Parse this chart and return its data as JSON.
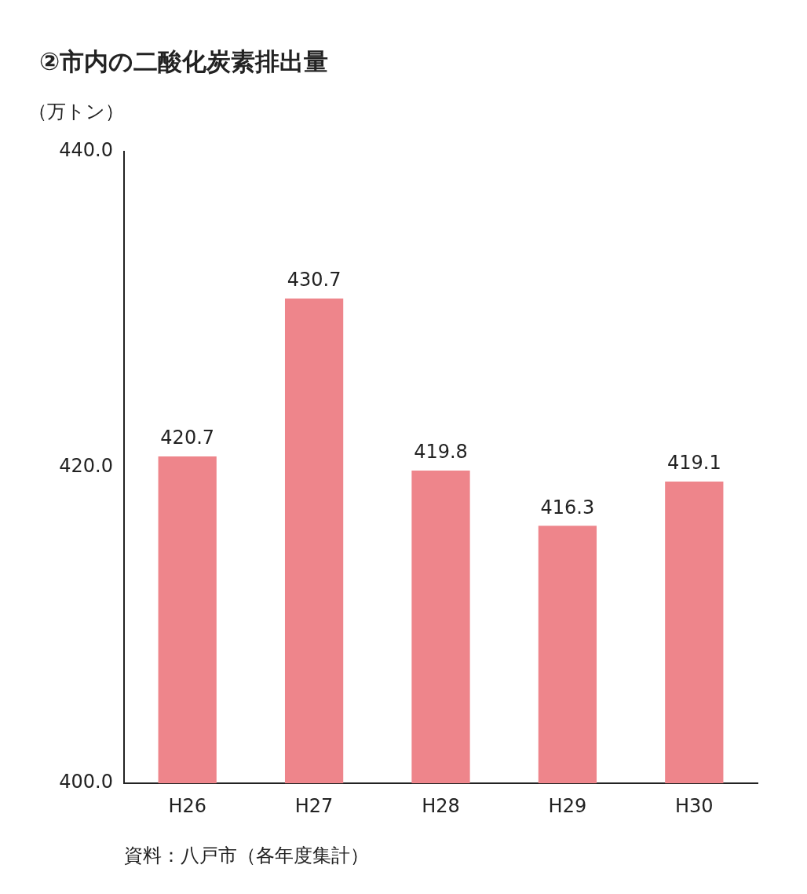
{
  "chart_data": {
    "type": "bar",
    "title": "②市内の二酸化炭素排出量",
    "ylabel": "（万トン）",
    "categories": [
      "H26",
      "H27",
      "H28",
      "H29",
      "H30"
    ],
    "values": [
      420.7,
      430.7,
      419.8,
      416.3,
      419.1
    ],
    "color": "#ee858b",
    "ylim": [
      400,
      440
    ],
    "yticks": [
      {
        "value": 400,
        "label": "400.0"
      },
      {
        "value": 420,
        "label": "420.0"
      },
      {
        "value": 440,
        "label": "440.0"
      }
    ],
    "grid": false,
    "data_labels": true,
    "annotations": [
      "資料：八戸市（各年度集計）"
    ]
  }
}
